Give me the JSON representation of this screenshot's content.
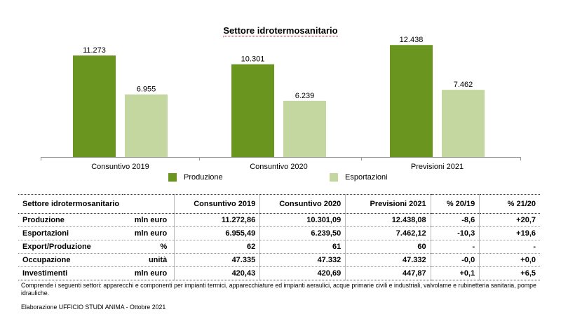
{
  "chart_data": {
    "type": "bar",
    "title": "Settore idrotermosanitario",
    "categories": [
      "Consuntivo 2019",
      "Consuntivo 2020",
      "Previsioni  2021"
    ],
    "series": [
      {
        "name": "Produzione",
        "values": [
          11273,
          10301,
          12438
        ],
        "labels": [
          "11.273",
          "10.301",
          "12.438"
        ],
        "color": "#6a961f"
      },
      {
        "name": "Esportazioni",
        "values": [
          6955,
          6239,
          7462
        ],
        "labels": [
          "6.955",
          "6.239",
          "7.462"
        ],
        "color": "#c4d7a0"
      }
    ],
    "ylim": [
      0,
      13000
    ],
    "legend_position": "bottom",
    "grid": false
  },
  "table": {
    "headers": [
      "Settore idrotermosanitario",
      "Consuntivo 2019",
      "Consuntivo 2020",
      "Previsioni  2021",
      "% 20/19",
      "% 21/20"
    ],
    "rows": [
      {
        "name": "Produzione",
        "unit": "mln euro",
        "values": [
          "11.272,86",
          "10.301,09",
          "12.438,08",
          "-8,6",
          "+20,7"
        ]
      },
      {
        "name": "Esportazioni",
        "unit": "mln euro",
        "values": [
          "6.955,49",
          "6.239,50",
          "7.462,12",
          "-10,3",
          "+19,6"
        ]
      },
      {
        "name": "Export/Produzione",
        "unit": "%",
        "values": [
          "62",
          "61",
          "60",
          "-",
          "-"
        ]
      },
      {
        "name": "Occupazione",
        "unit": "unità",
        "values": [
          "47.335",
          "47.332",
          "47.332",
          "-0,0",
          "+0,0"
        ]
      },
      {
        "name": "Investimenti",
        "unit": "mln euro",
        "values": [
          "420,43",
          "420,69",
          "447,87",
          "+0,1",
          "+6,5"
        ]
      }
    ]
  },
  "note": "Comprende i seguenti settori: apparecchi e componenti per impianti termici, apparecchiature ed impianti aeraulici, acque primarie civili e industriali, valvolame e rubinetteria sanitaria, pompe idrauliche.",
  "credit": "Elaborazione UFFICIO STUDI ANIMA - Ottobre 2021"
}
